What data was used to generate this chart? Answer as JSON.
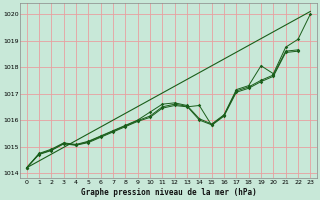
{
  "title": "Graphe pression niveau de la mer (hPa)",
  "background_color": "#c8e8d8",
  "grid_color": "#e8a0a0",
  "line_color": "#1a5e1a",
  "x_min": -0.5,
  "x_max": 23.5,
  "y_min": 1013.8,
  "y_max": 1020.4,
  "y_ticks": [
    1014,
    1015,
    1016,
    1017,
    1018,
    1019,
    1020
  ],
  "x_ticks": [
    0,
    1,
    2,
    3,
    4,
    5,
    6,
    7,
    8,
    9,
    10,
    11,
    12,
    13,
    14,
    15,
    16,
    17,
    18,
    19,
    20,
    21,
    22,
    23
  ],
  "series": [
    {
      "x": [
        0,
        1,
        2,
        3,
        4,
        5,
        6,
        7,
        8,
        9,
        10,
        11,
        12,
        13,
        14,
        15,
        16,
        17,
        18,
        19,
        20,
        21,
        22
      ],
      "y": [
        1014.2,
        1014.7,
        1014.85,
        1015.1,
        1015.05,
        1015.15,
        1015.35,
        1015.55,
        1015.75,
        1015.95,
        1016.1,
        1016.45,
        1016.55,
        1016.5,
        1016.55,
        1015.8,
        1016.15,
        1017.05,
        1017.2,
        1017.45,
        1017.65,
        1018.55,
        1018.6
      ],
      "marker": true
    },
    {
      "x": [
        0,
        1,
        2,
        3,
        4,
        5,
        6,
        7,
        8,
        9,
        10,
        11,
        12,
        13,
        14,
        15,
        16,
        17,
        18,
        19,
        20,
        21,
        22
      ],
      "y": [
        1014.2,
        1014.72,
        1014.87,
        1015.12,
        1015.06,
        1015.18,
        1015.38,
        1015.58,
        1015.78,
        1015.98,
        1016.15,
        1016.5,
        1016.6,
        1016.52,
        1016.0,
        1015.82,
        1016.18,
        1017.1,
        1017.25,
        1017.5,
        1017.7,
        1018.6,
        1018.65
      ],
      "marker": true
    },
    {
      "x": [
        0,
        1,
        2,
        3,
        4,
        5,
        6,
        7,
        8,
        9,
        10,
        11,
        12,
        13,
        14,
        15,
        16,
        17,
        18,
        19,
        20,
        21,
        22,
        23
      ],
      "y": [
        1014.2,
        1014.74,
        1014.9,
        1015.14,
        1015.08,
        1015.2,
        1015.4,
        1015.6,
        1015.8,
        1016.0,
        1016.3,
        1016.6,
        1016.65,
        1016.55,
        1016.05,
        1015.85,
        1016.2,
        1017.15,
        1017.3,
        1018.05,
        1017.75,
        1018.75,
        1019.05,
        1020.0
      ],
      "marker": true
    },
    {
      "x": [
        0,
        23
      ],
      "y": [
        1014.2,
        1020.1
      ],
      "marker": false
    }
  ]
}
